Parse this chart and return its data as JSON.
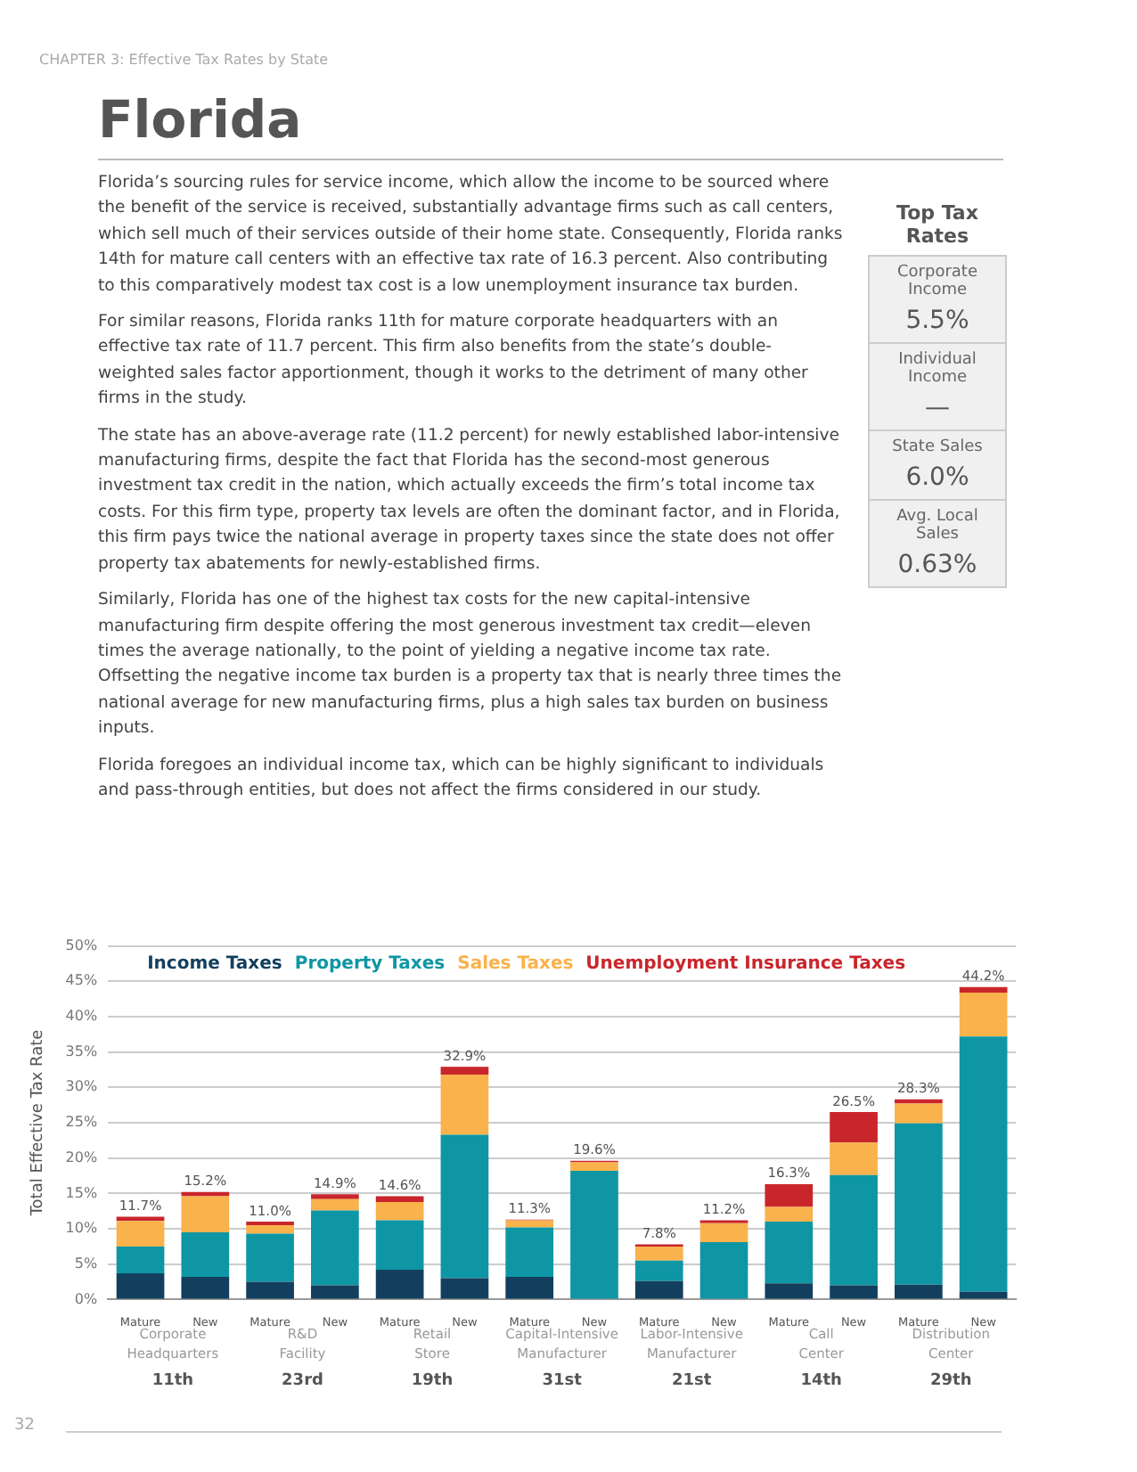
{
  "chart_data": {
    "type": "bar",
    "stacked": true,
    "title": "Florida",
    "subtitle": "CHAPTER 3: Effective Tax Rates by State",
    "ylabel": "Total Effective Tax Rate",
    "categories": [
      "Mature",
      "New",
      "Mature",
      "New",
      "Mature",
      "New",
      "Mature",
      "New",
      "Mature",
      "New",
      "Mature",
      "New",
      "Mature",
      "New"
    ],
    "series": [
      {
        "name": "Income Taxes",
        "color": "#133f5e",
        "values": [
          3.7,
          3.2,
          2.5,
          2.0,
          4.2,
          3.0,
          3.2,
          0,
          2.6,
          0,
          2.3,
          2.0,
          2.1,
          1.1
        ]
      },
      {
        "name": "Property Taxes",
        "color": "#0f96a4",
        "values": [
          3.8,
          6.3,
          6.8,
          10.6,
          7.0,
          20.3,
          7.0,
          18.2,
          2.9,
          8.1,
          8.7,
          15.6,
          22.8,
          36.1
        ]
      },
      {
        "name": "Sales Taxes",
        "color": "#f9b24c",
        "values": [
          3.6,
          5.1,
          1.2,
          1.6,
          2.6,
          8.5,
          1.0,
          1.2,
          2.0,
          2.7,
          2.1,
          4.6,
          2.8,
          6.2
        ]
      },
      {
        "name": "Unemployment Insurance Taxes",
        "color": "#c9262c",
        "values": [
          0.6,
          0.6,
          0.5,
          0.7,
          0.8,
          1.1,
          0.1,
          0.2,
          0.3,
          0.4,
          3.2,
          4.3,
          0.6,
          0.8
        ]
      }
    ],
    "totals": [
      "11.7%",
      "15.2%",
      "11.0%",
      "14.9%",
      "14.6%",
      "32.9%",
      "11.3%",
      "19.6%",
      "7.8%",
      "11.2%",
      "16.3%",
      "26.5%",
      "28.3%",
      "44.2%"
    ],
    "ylim": [
      0,
      50
    ],
    "yticks": [
      {
        "value": 0,
        "label": "0%"
      },
      {
        "value": 5,
        "label": "5%"
      },
      {
        "value": 10,
        "label": "10%"
      },
      {
        "value": 15,
        "label": "15%"
      },
      {
        "value": 20,
        "label": "20%"
      },
      {
        "value": 25,
        "label": "25%"
      },
      {
        "value": 30,
        "label": "30%"
      },
      {
        "value": 35,
        "label": "35%"
      },
      {
        "value": 40,
        "label": "40%"
      },
      {
        "value": 45,
        "label": "45%"
      },
      {
        "value": 50,
        "label": "50%"
      }
    ],
    "grid": "y",
    "legend": "top left",
    "annotations": [
      "Florida’s sourcing rules for service income, which allow the income to be sourced where the benefit of the service is received, substantially advantage firms such as call centers, which sell much of their services outside of their home state. Consequently, Florida ranks 14th for mature call centers with an effective tax rate of 16.3 percent. Also contributing to this comparatively modest tax cost is a low unemployment insurance tax burden.",
      "For similar reasons, Florida ranks 11th for mature corporate headquarters with an effective tax rate of 11.7 percent. This firm also benefits from the state’s double-weighted sales factor apportionment, though it works to the detriment of many other firms in the study.",
      "The state has an above-average rate (11.2 percent) for newly established labor-intensive manufacturing firms, despite the fact that Florida has the second-most generous investment tax credit in the nation, which actually exceeds the firm’s total income tax costs. For this firm type, property tax levels are often the dominant factor, and in Florida, this firm pays twice the national average in property taxes since the state does not offer property tax abatements for newly-established firms.",
      "Similarly, Florida has one of the highest tax costs for the new capital-intensive manufacturing firm despite offering the most generous investment tax credit—eleven times the average nationally, to the point of yielding a negative income tax rate. Offsetting the negative income tax burden is a property tax that is nearly three times the national average for new manufacturing firms, plus a high sales tax burden on business inputs.",
      "Florida foregoes an individual income tax, which can be highly significant to individuals and pass-through entities, but does not affect the firms considered in our study.",
      "Top Tax Rates",
      "Corporate Income",
      "5.5%",
      "Individual Income",
      "—",
      "State Sales",
      "6.0%",
      "Avg. Local Sales",
      "0.63%",
      "Corporate Headquarters",
      "R&D Facility",
      "Retail Store",
      "Capital-Intensive Manufacturer",
      "Labor-Intensive Manufacturer",
      "Call Center",
      "Distribution Center",
      "11th",
      "23rd",
      "19th",
      "31st",
      "21st",
      "14th",
      "29th",
      "32"
    ]
  }
}
